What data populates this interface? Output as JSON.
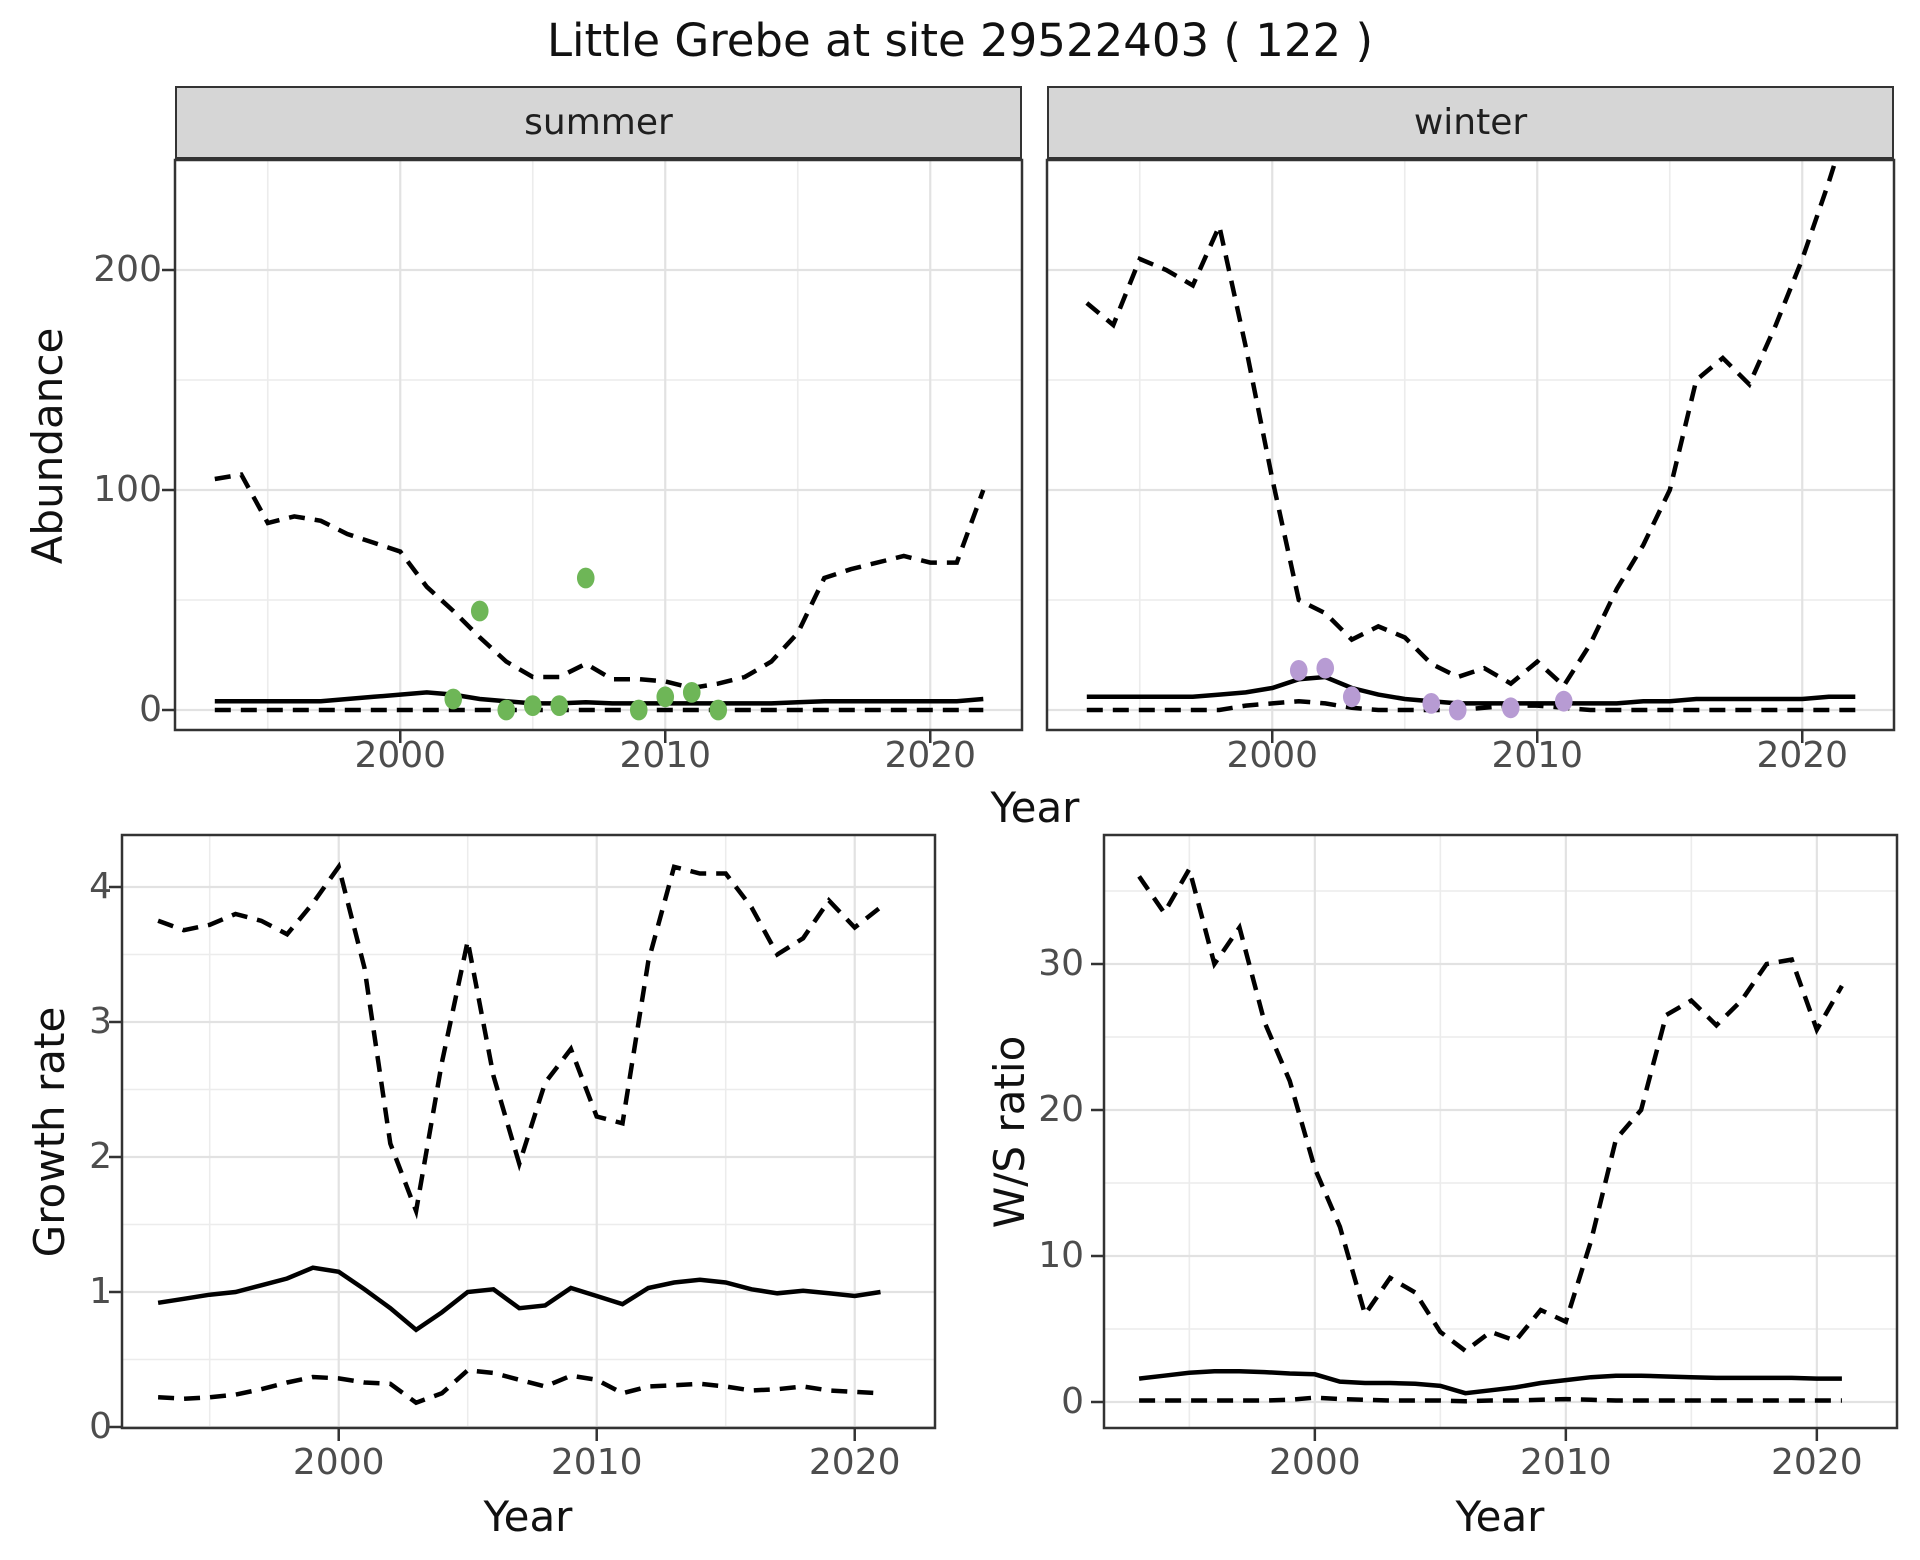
{
  "title": "Little Grebe at site 29522403 ( 122 )",
  "colors": {
    "line": "#000000",
    "summer_point": "#6eb657",
    "winter_point": "#b79bd3",
    "strip_bg": "#d6d6d6",
    "panel_border": "#333333",
    "grid_major": "#e2e2e2",
    "grid_minor": "#ececec",
    "axis_text": "#4d4d4d"
  },
  "chart_data": [
    {
      "type": "line",
      "facet": "summer",
      "xlabel": "Year",
      "ylabel": "Abundance",
      "xlim": [
        1991.5,
        2023.5
      ],
      "ylim": [
        0,
        250
      ],
      "x_ticks": [
        2000,
        2010,
        2020
      ],
      "y_ticks": [
        0,
        100,
        200
      ],
      "grid": "major+minor",
      "legend": "none",
      "x": [
        1993,
        1994,
        1995,
        1996,
        1997,
        1998,
        1999,
        2000,
        2001,
        2002,
        2003,
        2004,
        2005,
        2006,
        2007,
        2008,
        2009,
        2010,
        2011,
        2012,
        2013,
        2014,
        2015,
        2016,
        2017,
        2018,
        2019,
        2020,
        2021,
        2022
      ],
      "series": [
        {
          "name": "upper_95_ci",
          "style": "dashed",
          "values": [
            105,
            107,
            85,
            88,
            86,
            80,
            76,
            72,
            56,
            45,
            33,
            22,
            15,
            15,
            21,
            14,
            14,
            13,
            10,
            12,
            15,
            22,
            35,
            60,
            64,
            67,
            70,
            67,
            67,
            100
          ]
        },
        {
          "name": "median_estimate",
          "style": "solid",
          "values": [
            4,
            4,
            4,
            4,
            4,
            5,
            6,
            7,
            8,
            7,
            5,
            4,
            3,
            3,
            3.5,
            3,
            3,
            3,
            3,
            3,
            3,
            3,
            3.5,
            4,
            4,
            4,
            4,
            4,
            4,
            5
          ]
        },
        {
          "name": "lower_95_ci",
          "style": "dashed",
          "values": [
            0,
            0,
            0,
            0,
            0,
            0,
            0,
            0,
            0,
            0,
            0,
            0,
            0,
            0,
            0,
            0,
            0,
            0,
            0,
            0,
            0,
            0,
            0,
            0,
            0,
            0,
            0,
            0,
            0,
            0
          ]
        }
      ],
      "points": {
        "name": "summer_observed_counts",
        "color": "#6eb657",
        "x": [
          2002,
          2003,
          2004,
          2005,
          2006,
          2007,
          2009,
          2010,
          2011,
          2012
        ],
        "y": [
          5,
          45,
          0,
          2,
          2,
          60,
          0,
          6,
          8,
          0
        ]
      }
    },
    {
      "type": "line",
      "facet": "winter",
      "xlabel": "Year",
      "ylabel": "Abundance",
      "xlim": [
        1991.5,
        2023.5
      ],
      "ylim": [
        0,
        250
      ],
      "x_ticks": [
        2000,
        2010,
        2020
      ],
      "y_ticks": [
        0,
        100,
        200
      ],
      "grid": "major+minor",
      "legend": "none",
      "x": [
        1993,
        1994,
        1995,
        1996,
        1997,
        1998,
        1999,
        2000,
        2001,
        2002,
        2003,
        2004,
        2005,
        2006,
        2007,
        2008,
        2009,
        2010,
        2011,
        2012,
        2013,
        2014,
        2015,
        2016,
        2017,
        2018,
        2019,
        2020,
        2021,
        2022
      ],
      "series": [
        {
          "name": "upper_95_ci",
          "style": "dashed",
          "values": [
            185,
            175,
            205,
            200,
            193,
            220,
            165,
            105,
            50,
            44,
            32,
            38,
            33,
            21,
            15,
            19,
            12,
            22,
            11,
            30,
            55,
            75,
            100,
            150,
            160,
            148,
            175,
            205,
            240,
            278
          ]
        },
        {
          "name": "median_estimate",
          "style": "solid",
          "values": [
            6,
            6,
            6,
            6,
            6,
            7,
            8,
            10,
            14,
            15,
            10,
            7,
            5,
            4,
            3,
            3,
            3,
            3,
            3,
            3,
            3,
            4,
            4,
            5,
            5,
            5,
            5,
            5,
            6,
            6
          ]
        },
        {
          "name": "lower_95_ci",
          "style": "dashed",
          "values": [
            0,
            0,
            0,
            0,
            0,
            0,
            2,
            3,
            4,
            3,
            1,
            0,
            0,
            0,
            0,
            1,
            2,
            2,
            1,
            0,
            0,
            0,
            0,
            0,
            0,
            0,
            0,
            0,
            0,
            0
          ]
        }
      ],
      "points": {
        "name": "winter_observed_counts",
        "color": "#b79bd3",
        "x": [
          2001,
          2002,
          2003,
          2006,
          2007,
          2009,
          2011
        ],
        "y": [
          18,
          19,
          6,
          3,
          0,
          1,
          4
        ]
      }
    },
    {
      "type": "line",
      "facet": null,
      "xlabel": "Year",
      "ylabel": "Growth rate",
      "xlim": [
        1991.6,
        2023.1
      ],
      "ylim": [
        0,
        4.35
      ],
      "x_ticks": [
        2000,
        2010,
        2020
      ],
      "y_ticks": [
        0,
        1,
        2,
        3,
        4
      ],
      "grid": "major+minor",
      "legend": "none",
      "x": [
        1993,
        1994,
        1995,
        1996,
        1997,
        1998,
        1999,
        2000,
        2001,
        2002,
        2003,
        2004,
        2005,
        2006,
        2007,
        2008,
        2009,
        2010,
        2011,
        2012,
        2013,
        2014,
        2015,
        2016,
        2017,
        2018,
        2019,
        2020,
        2021
      ],
      "series": [
        {
          "name": "upper_95_ci",
          "style": "dashed",
          "values": [
            3.75,
            3.68,
            3.72,
            3.8,
            3.75,
            3.65,
            3.88,
            4.15,
            3.4,
            2.1,
            1.6,
            2.7,
            3.6,
            2.6,
            1.95,
            2.55,
            2.8,
            2.3,
            2.25,
            3.45,
            4.15,
            4.1,
            4.1,
            3.85,
            3.5,
            3.62,
            3.9,
            3.7,
            3.85
          ]
        },
        {
          "name": "median_estimate",
          "style": "solid",
          "values": [
            0.92,
            0.95,
            0.98,
            1.0,
            1.05,
            1.1,
            1.18,
            1.15,
            1.02,
            0.88,
            0.72,
            0.85,
            1.0,
            1.02,
            0.88,
            0.9,
            1.03,
            0.97,
            0.91,
            1.03,
            1.07,
            1.09,
            1.07,
            1.02,
            0.99,
            1.01,
            0.99,
            0.97,
            1.0
          ]
        },
        {
          "name": "lower_95_ci",
          "style": "dashed",
          "values": [
            0.22,
            0.21,
            0.22,
            0.24,
            0.28,
            0.33,
            0.37,
            0.36,
            0.33,
            0.32,
            0.18,
            0.25,
            0.42,
            0.4,
            0.35,
            0.3,
            0.38,
            0.35,
            0.25,
            0.3,
            0.31,
            0.32,
            0.3,
            0.27,
            0.28,
            0.3,
            0.27,
            0.26,
            0.25
          ]
        }
      ],
      "points": null
    },
    {
      "type": "line",
      "facet": null,
      "xlabel": "Year",
      "ylabel": "W/S ratio",
      "xlim": [
        1991.6,
        2023.3
      ],
      "ylim": [
        0,
        38
      ],
      "x_ticks": [
        2000,
        2010,
        2020
      ],
      "y_ticks": [
        0,
        10,
        20,
        30
      ],
      "grid": "major+minor",
      "legend": "none",
      "x": [
        1993,
        1994,
        1995,
        1996,
        1997,
        1998,
        1999,
        2000,
        2001,
        2002,
        2003,
        2004,
        2005,
        2006,
        2007,
        2008,
        2009,
        2010,
        2011,
        2012,
        2013,
        2014,
        2015,
        2016,
        2017,
        2018,
        2019,
        2020,
        2021
      ],
      "series": [
        {
          "name": "upper_95_ci",
          "style": "dashed",
          "values": [
            36,
            33.5,
            36.5,
            30,
            32.5,
            26,
            22,
            16,
            12,
            6,
            8.5,
            7.5,
            4.8,
            3.5,
            4.8,
            4.2,
            6.3,
            5.5,
            11,
            18,
            20,
            26.5,
            27.5,
            25.8,
            27.5,
            30,
            30.3,
            25.5,
            28.5
          ]
        },
        {
          "name": "median_estimate",
          "style": "solid",
          "values": [
            1.6,
            1.8,
            2.0,
            2.1,
            2.1,
            2.05,
            1.95,
            1.9,
            1.4,
            1.3,
            1.3,
            1.25,
            1.1,
            0.6,
            0.8,
            1.0,
            1.3,
            1.5,
            1.7,
            1.8,
            1.8,
            1.75,
            1.7,
            1.65,
            1.65,
            1.65,
            1.65,
            1.6,
            1.6
          ]
        },
        {
          "name": "lower_95_ci",
          "style": "dashed",
          "values": [
            0.1,
            0.1,
            0.1,
            0.1,
            0.1,
            0.1,
            0.15,
            0.3,
            0.2,
            0.15,
            0.1,
            0.1,
            0.1,
            0.05,
            0.1,
            0.1,
            0.15,
            0.2,
            0.15,
            0.1,
            0.1,
            0.1,
            0.1,
            0.1,
            0.1,
            0.1,
            0.1,
            0.1,
            0.1
          ]
        }
      ],
      "points": null
    }
  ]
}
